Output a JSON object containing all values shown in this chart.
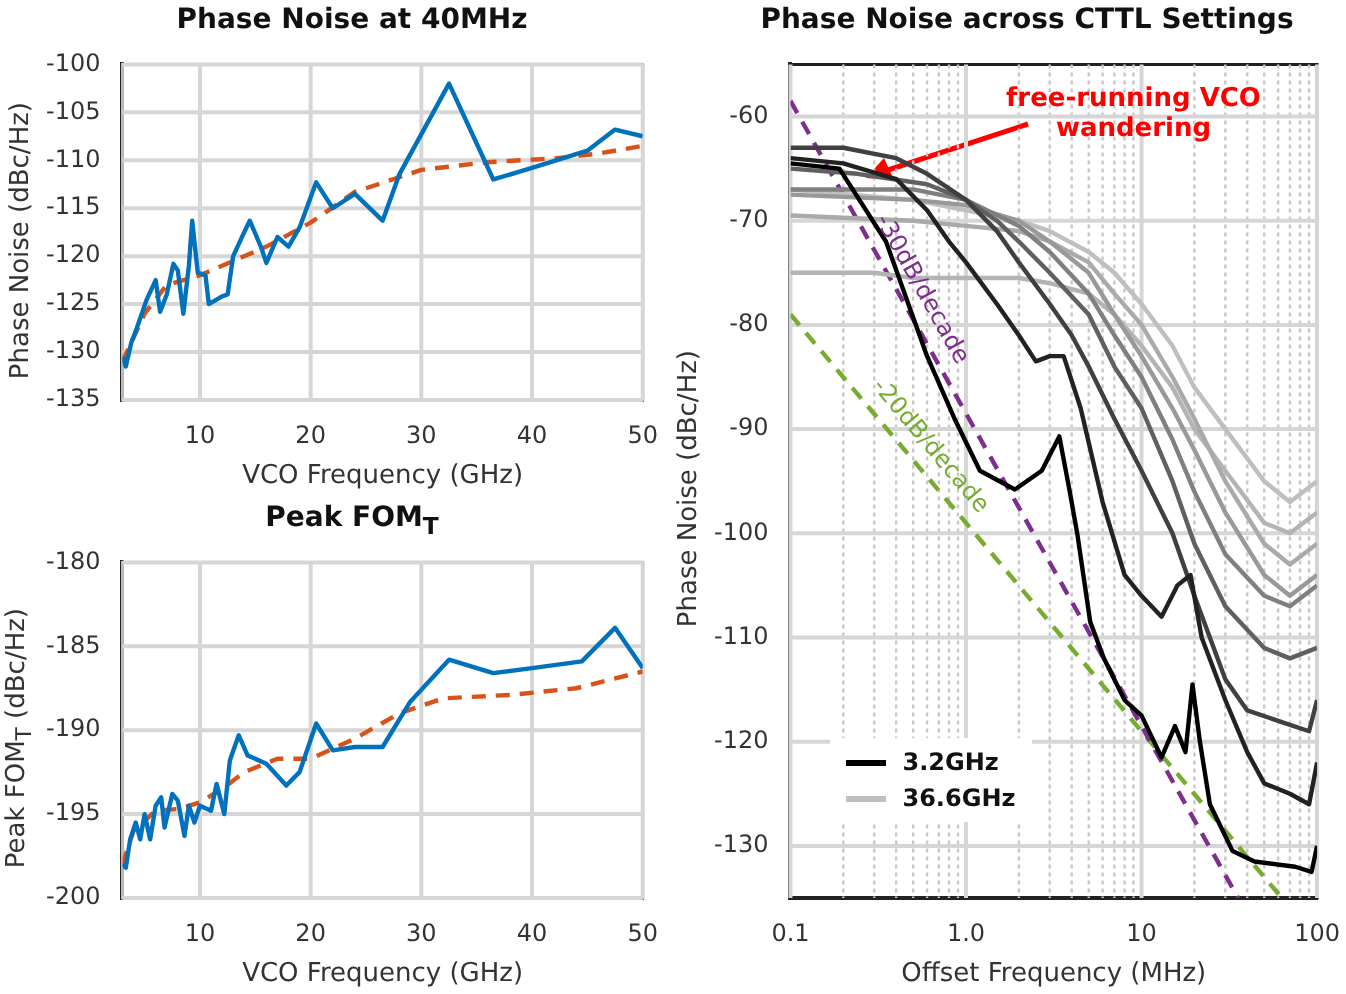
{
  "chart_data": [
    {
      "type": "line",
      "title": "Phase Noise at 40MHz",
      "xlabel": "VCO Frequency (GHz)",
      "ylabel": "Phase Noise (dBc/Hz)",
      "xlim": [
        3,
        50
      ],
      "xticks": [
        10,
        20,
        30,
        40,
        50
      ],
      "ylim": [
        -135,
        -100
      ],
      "yticks": [
        -135,
        -130,
        -125,
        -120,
        -115,
        -110,
        -105,
        -100
      ],
      "grid": true,
      "marker": "none",
      "series": [
        {
          "color": "#0072bd",
          "line_style": "solid",
          "x": [
            3.0,
            3.3,
            3.8,
            4.3,
            5.2,
            6.0,
            6.4,
            7.0,
            7.6,
            8.0,
            8.5,
            9.0,
            9.3,
            9.8,
            10.5,
            10.8,
            12,
            12.5,
            13,
            14,
            14.5,
            15.5,
            16,
            17,
            18,
            19,
            20.5,
            22,
            24,
            26.5,
            28,
            32.5,
            36.5,
            40,
            45,
            47.5,
            50
          ],
          "values": [
            -130.5,
            -131.5,
            -129,
            -127.5,
            -124.5,
            -122.5,
            -125.8,
            -124,
            -120.8,
            -121.5,
            -126,
            -121,
            -116.3,
            -121.7,
            -122,
            -125,
            -124.2,
            -124,
            -120,
            -117.5,
            -116.3,
            -119,
            -120.7,
            -118,
            -119,
            -117,
            -112.3,
            -115,
            -113.5,
            -116.3,
            -111.5,
            -102,
            -112,
            -110.8,
            -109,
            -106.8,
            -107.5
          ]
        },
        {
          "color": "#d95319",
          "line_style": "dashed",
          "x": [
            3,
            5,
            7,
            10,
            13,
            16,
            20,
            24,
            30,
            36,
            42,
            46,
            50
          ],
          "values": [
            -131,
            -126,
            -123,
            -122,
            -120.5,
            -119,
            -116.5,
            -113.3,
            -111,
            -110.2,
            -109.8,
            -109.3,
            -108.5
          ]
        }
      ]
    },
    {
      "type": "line",
      "title": "Peak FOM$_{T}$",
      "xlabel": "VCO Frequency (GHz)",
      "ylabel": "Peak FOM$_{T}$ (dBc/Hz)",
      "xlim": [
        3,
        50
      ],
      "xticks": [
        10,
        20,
        30,
        40,
        50
      ],
      "ylim": [
        -200,
        -180
      ],
      "yticks": [
        -200,
        -195,
        -190,
        -185,
        -180
      ],
      "grid": true,
      "marker": "none",
      "series": [
        {
          "color": "#0072bd",
          "line_style": "solid",
          "x": [
            3,
            3.3,
            3.7,
            4.2,
            4.6,
            5,
            5.5,
            6,
            6.5,
            6.8,
            7.5,
            8,
            8.6,
            9,
            9.5,
            10,
            11,
            11.5,
            12.2,
            12.7,
            13.5,
            14.3,
            16,
            17.8,
            19,
            20.5,
            22,
            24,
            26.5,
            29,
            32.5,
            36.5,
            40,
            44.5,
            47.5,
            50
          ],
          "values": [
            -198,
            -198.2,
            -196.5,
            -195.5,
            -196.5,
            -195,
            -196.5,
            -194.5,
            -194,
            -195.8,
            -193.8,
            -194.2,
            -196.3,
            -194.5,
            -195.5,
            -194.5,
            -194.8,
            -193.2,
            -195,
            -191.8,
            -190.3,
            -191.5,
            -192,
            -193.3,
            -192.5,
            -189.6,
            -191.2,
            -191,
            -191,
            -188.3,
            -185.8,
            -186.6,
            -186.3,
            -185.9,
            -183.9,
            -186.3
          ]
        },
        {
          "color": "#d95319",
          "line_style": "dashed",
          "x": [
            3,
            4,
            6,
            8,
            10,
            12,
            14,
            17,
            20,
            24,
            28,
            32,
            38,
            44,
            50
          ],
          "values": [
            -198,
            -196,
            -194.8,
            -194.7,
            -194.3,
            -193.5,
            -192.5,
            -191.7,
            -191.7,
            -190.5,
            -189,
            -188.1,
            -187.9,
            -187.5,
            -186.5
          ]
        }
      ]
    },
    {
      "type": "line",
      "title": "Phase Noise across CTTL Settings",
      "xlabel": "Offset Frequency (MHz)",
      "ylabel": "Phase Noise (dBc/Hz)",
      "log": "x",
      "xlim": [
        0.1,
        100
      ],
      "xticks": [
        0.1,
        {
          "value": 0.2,
          "label": null
        },
        {
          "value": 0.3,
          "label": null
        },
        {
          "value": 0.4,
          "label": null
        },
        {
          "value": 0.5,
          "label": null
        },
        {
          "value": 0.6,
          "label": null
        },
        {
          "value": 0.7,
          "label": null
        },
        {
          "value": 0.8,
          "label": null
        },
        {
          "value": 0.9,
          "label": null
        },
        {
          "value": 1,
          "label": "1.0"
        },
        {
          "value": 2,
          "label": null
        },
        {
          "value": 3,
          "label": null
        },
        {
          "value": 4,
          "label": null
        },
        {
          "value": 5,
          "label": null
        },
        {
          "value": 6,
          "label": null
        },
        {
          "value": 7,
          "label": null
        },
        {
          "value": 8,
          "label": null
        },
        {
          "value": 9,
          "label": null
        },
        10,
        {
          "value": 20,
          "label": null
        },
        {
          "value": 30,
          "label": null
        },
        {
          "value": 40,
          "label": null
        },
        {
          "value": 50,
          "label": null
        },
        {
          "value": 60,
          "label": null
        },
        {
          "value": 70,
          "label": null
        },
        {
          "value": 80,
          "label": null
        },
        {
          "value": 90,
          "label": null
        },
        100
      ],
      "ylim": [
        -135,
        -55
      ],
      "yticks": [
        -130,
        -120,
        -110,
        -100,
        -90,
        -80,
        -70,
        -60
      ],
      "grid": true,
      "marker": "none",
      "legend": "bottom left",
      "annotations": [
        {
          "text": "free-running VCO wandering",
          "x": 0.33,
          "y": -65.3
        }
      ],
      "series": [
        {
          "name": "3.2GHz",
          "color": "#000000",
          "line_style": "solid",
          "x": [
            0.1,
            0.19,
            0.35,
            0.6,
            0.86,
            1.2,
            1.9,
            2.7,
            3.4,
            3.9,
            4.3,
            5.1,
            6.1,
            8,
            10,
            13,
            15.5,
            17.8,
            19.5,
            21.5,
            24.5,
            33,
            44,
            75,
            93,
            100
          ],
          "values": [
            -64.5,
            -65,
            -72,
            -83,
            -89,
            -94,
            -95.8,
            -94,
            -90.7,
            -96,
            -100,
            -108.5,
            -112,
            -116,
            -117.5,
            -121.5,
            -118.5,
            -121,
            -114.5,
            -120,
            -126,
            -130.5,
            -131.5,
            -132,
            -132.5,
            -130
          ]
        },
        {
          "color": "#222222",
          "line_style": "solid",
          "x": [
            0.1,
            0.2,
            0.4,
            0.6,
            0.8,
            1,
            1.5,
            2,
            2.5,
            3,
            3.6,
            4.5,
            6,
            8,
            10,
            13,
            16,
            19,
            22,
            30,
            40,
            50,
            70,
            90,
            100
          ],
          "values": [
            -64,
            -64.5,
            -66,
            -69,
            -72,
            -74,
            -78,
            -81,
            -83.5,
            -83,
            -83,
            -88,
            -97,
            -104,
            -106,
            -108,
            -105,
            -104,
            -110,
            -116,
            -121,
            -124,
            -125,
            -126,
            -122
          ]
        },
        {
          "color": "#404040",
          "line_style": "solid",
          "x": [
            0.1,
            0.2,
            0.4,
            0.6,
            1,
            1.5,
            2,
            3,
            4,
            5,
            7,
            10,
            15,
            20,
            30,
            40,
            60,
            90,
            100
          ],
          "values": [
            -63,
            -63,
            -64,
            -65.5,
            -68,
            -71,
            -74,
            -78,
            -81,
            -84,
            -89,
            -94,
            -100,
            -106,
            -114,
            -117,
            -118,
            -119,
            -116
          ]
        },
        {
          "color": "#606060",
          "line_style": "solid",
          "x": [
            0.1,
            0.24,
            0.6,
            1,
            1.5,
            2,
            3,
            5,
            7,
            10,
            15,
            20,
            30,
            50,
            70,
            100
          ],
          "values": [
            -65,
            -65.5,
            -66.5,
            -68,
            -70,
            -72,
            -75,
            -79,
            -84,
            -88,
            -95,
            -101,
            -107,
            -111,
            -112,
            -111
          ]
        },
        {
          "color": "#808080",
          "line_style": "solid",
          "x": [
            0.1,
            0.5,
            1,
            2,
            3,
            5,
            7,
            10,
            15,
            20,
            30,
            50,
            70,
            100
          ],
          "values": [
            -67,
            -67,
            -68,
            -70.5,
            -73,
            -77,
            -81,
            -85,
            -91,
            -96,
            -102,
            -106,
            -107,
            -105
          ]
        },
        {
          "color": "#999999",
          "line_style": "solid",
          "x": [
            0.1,
            0.5,
            1,
            2,
            3,
            5,
            7,
            10,
            15,
            20,
            30,
            50,
            70,
            100
          ],
          "values": [
            -67.5,
            -68,
            -68.5,
            -70,
            -72,
            -75,
            -79,
            -83,
            -88,
            -92,
            -98,
            -104,
            -106,
            -104
          ]
        },
        {
          "color": "#aaaaaa",
          "line_style": "solid",
          "x": [
            0.1,
            0.5,
            1,
            2,
            3,
            5,
            7,
            10,
            15,
            20,
            30,
            50,
            70,
            100
          ],
          "values": [
            -69.5,
            -70,
            -70.5,
            -71,
            -72,
            -74,
            -77,
            -80,
            -85,
            -89,
            -95,
            -101,
            -103,
            -101
          ]
        },
        {
          "color": "#b4b4b4",
          "line_style": "solid",
          "x": [
            0.1,
            0.3,
            0.5,
            1,
            2,
            3,
            5,
            7,
            10,
            15,
            20,
            30,
            50,
            70,
            100
          ],
          "values": [
            -75,
            -75,
            -75.5,
            -75.5,
            -75.5,
            -76,
            -77,
            -79,
            -82,
            -86,
            -90,
            -94,
            -99,
            -100,
            -98
          ]
        },
        {
          "name": "36.6GHz",
          "color": "#bfbfbf",
          "line_style": "solid",
          "x": [
            0.1,
            0.5,
            1,
            2,
            3,
            5,
            7,
            10,
            15,
            20,
            30,
            50,
            70,
            100
          ],
          "values": [
            -67,
            -68,
            -69,
            -70,
            -71,
            -73,
            -75,
            -78,
            -82,
            -86,
            -90,
            -95,
            -97,
            -95
          ]
        },
        {
          "name": "-30dB/decade",
          "color": "#7e2f8e",
          "line_style": "dashed",
          "x": [
            0.1,
            35.5
          ],
          "values": [
            -58.5,
            -135
          ]
        },
        {
          "name": "-20dB/decade",
          "color": "#77ac30",
          "line_style": "dashed",
          "x": [
            0.1,
            63
          ],
          "values": [
            -79,
            -135
          ]
        }
      ]
    }
  ]
}
